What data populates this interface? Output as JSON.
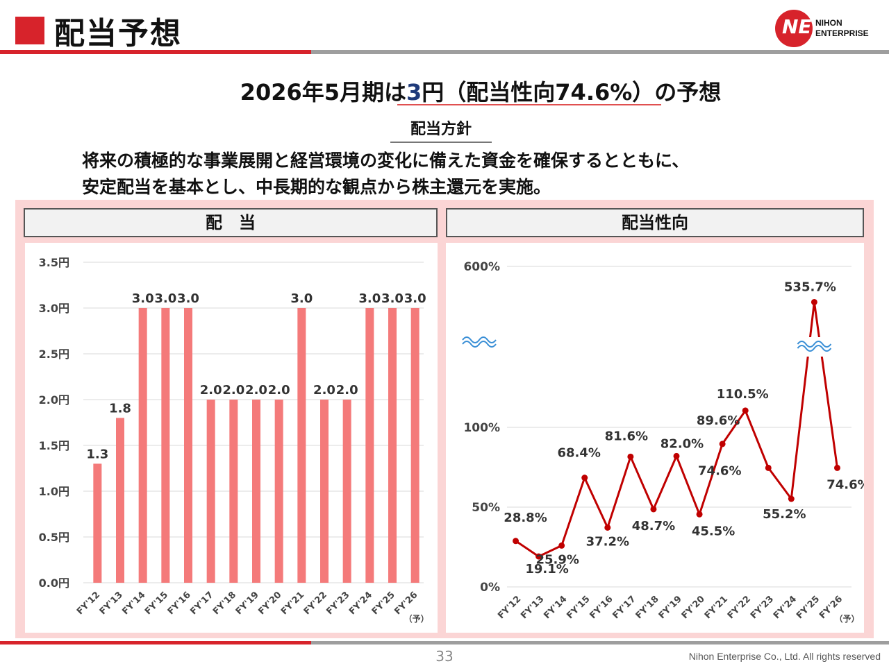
{
  "page": {
    "title": "配当予想",
    "page_number": "33",
    "copyright": "Nihon Enterprise Co., Ltd. All rights reserved"
  },
  "logo": {
    "mark": "NE",
    "line1": "NIHON",
    "line2": "ENTERPRISE"
  },
  "headline": {
    "prefix": "2026年5月期は",
    "highlight": "3",
    "suffix": "円（配当性向74.6%）の予想"
  },
  "policy": {
    "label": "配当方針",
    "line1": "将来の積極的な事業展開と経営環境の変化に備えた資金を確保するとともに、",
    "line2": "安定配当を基本とし、中長期的な観点から株主還元を実施。"
  },
  "panels": {
    "dividend_title": "配　当",
    "payout_title": "配当性向"
  },
  "colors": {
    "brand_red": "#d7232b",
    "bar": "#f47a7a",
    "line": "#c00000",
    "panel_bg": "#fbd5d5"
  },
  "chart_data": [
    {
      "type": "bar",
      "categories": [
        "FY'12",
        "FY'13",
        "FY'14",
        "FY'15",
        "FY'16",
        "FY'17",
        "FY'18",
        "FY'19",
        "FY'20",
        "FY'21",
        "FY'22",
        "FY'23",
        "FY'24",
        "FY'25",
        "FY'26"
      ],
      "category_note": "（予）",
      "values": [
        1.3,
        1.8,
        3.0,
        3.0,
        3.0,
        2.0,
        2.0,
        2.0,
        2.0,
        3.0,
        2.0,
        2.0,
        3.0,
        3.0,
        3.0
      ],
      "data_labels": [
        "1.3",
        "1.8",
        "3.0",
        "3.0",
        "3.0",
        "2.0",
        "2.0",
        "2.0",
        "2.0",
        "3.0",
        "2.0",
        "2.0",
        "3.0",
        "3.0",
        "3.0"
      ],
      "yticks": [
        "0.0円",
        "0.5円",
        "1.0円",
        "1.5円",
        "2.0円",
        "2.5円",
        "3.0円",
        "3.5円"
      ],
      "ylim": [
        0,
        3.5
      ],
      "grid": true
    },
    {
      "type": "line",
      "categories": [
        "FY'12",
        "FY'13",
        "FY'14",
        "FY'15",
        "FY'16",
        "FY'17",
        "FY'18",
        "FY'19",
        "FY'20",
        "FY'21",
        "FY'22",
        "FY'23",
        "FY'24",
        "FY'25",
        "FY'26"
      ],
      "category_note": "（予）",
      "values": [
        28.8,
        19.1,
        25.9,
        68.4,
        37.2,
        81.6,
        48.7,
        82.0,
        45.5,
        89.6,
        110.5,
        74.6,
        55.2,
        535.7,
        74.6
      ],
      "data_labels": [
        "28.8%",
        "19.1%",
        "25.9%",
        "68.4%",
        "37.2%",
        "81.6%",
        "48.7%",
        "82.0%",
        "45.5%",
        "89.6%",
        "110.5%",
        "74.6%",
        "55.2%",
        "535.7%",
        "74.6%"
      ],
      "yticks": [
        "0%",
        "50%",
        "100%",
        "600%"
      ],
      "axis_break": true,
      "grid": true
    }
  ]
}
